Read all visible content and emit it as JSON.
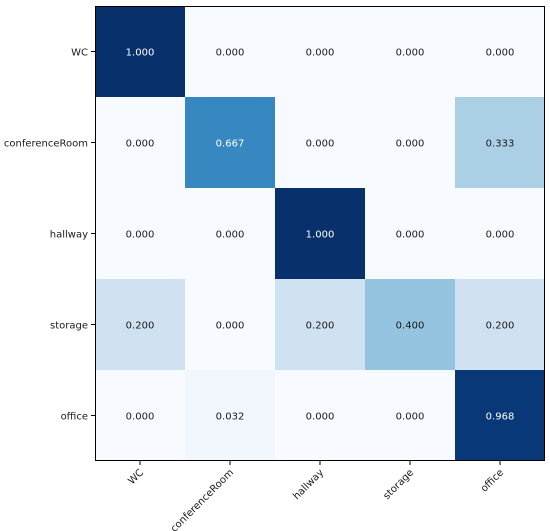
{
  "chart_data": {
    "type": "heatmap",
    "title": "",
    "xlabel": "",
    "ylabel": "",
    "row_labels": [
      "WC",
      "conferenceRoom",
      "hallway",
      "storage",
      "office"
    ],
    "col_labels": [
      "WC",
      "conferenceRoom",
      "hallway",
      "storage",
      "office"
    ],
    "values": [
      [
        1.0,
        0.0,
        0.0,
        0.0,
        0.0
      ],
      [
        0.0,
        0.667,
        0.0,
        0.0,
        0.333
      ],
      [
        0.0,
        0.0,
        1.0,
        0.0,
        0.0
      ],
      [
        0.2,
        0.0,
        0.2,
        0.4,
        0.2
      ],
      [
        0.0,
        0.032,
        0.0,
        0.0,
        0.968
      ]
    ],
    "value_labels": [
      [
        "1.000",
        "0.000",
        "0.000",
        "0.000",
        "0.000"
      ],
      [
        "0.000",
        "0.667",
        "0.000",
        "0.000",
        "0.333"
      ],
      [
        "0.000",
        "0.000",
        "1.000",
        "0.000",
        "0.000"
      ],
      [
        "0.200",
        "0.000",
        "0.200",
        "0.400",
        "0.200"
      ],
      [
        "0.000",
        "0.032",
        "0.000",
        "0.000",
        "0.968"
      ]
    ],
    "colormap": "Blues",
    "vmin": 0,
    "vmax": 1
  }
}
